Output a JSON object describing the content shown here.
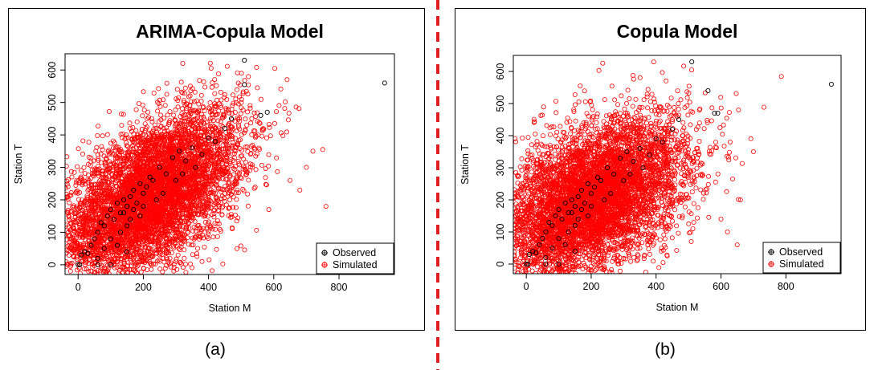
{
  "captions": [
    "(a)",
    "(b)"
  ],
  "divider_color": "#e02020",
  "chart_data": [
    {
      "type": "scatter",
      "title": "ARIMA-Copula Model",
      "xlabel": "Station M",
      "ylabel": "Station T",
      "xlim": [
        -40,
        970
      ],
      "ylim": [
        -30,
        650
      ],
      "xticks": [
        0,
        200,
        400,
        600,
        800
      ],
      "yticks": [
        0,
        100,
        200,
        300,
        400,
        500,
        600
      ],
      "legend": {
        "position": "bottom-right",
        "entries": [
          "Observed",
          "Simulated"
        ]
      },
      "grid": false,
      "series": [
        {
          "name": "Observed",
          "color": "#000000",
          "marker": "circle-open",
          "points": [
            [
              0,
              0
            ],
            [
              5,
              0
            ],
            [
              10,
              30
            ],
            [
              20,
              40
            ],
            [
              30,
              35
            ],
            [
              40,
              60
            ],
            [
              50,
              80
            ],
            [
              60,
              100
            ],
            [
              70,
              130
            ],
            [
              80,
              120
            ],
            [
              90,
              150
            ],
            [
              100,
              170
            ],
            [
              110,
              140
            ],
            [
              120,
              190
            ],
            [
              130,
              160
            ],
            [
              140,
              200
            ],
            [
              150,
              180
            ],
            [
              160,
              210
            ],
            [
              170,
              230
            ],
            [
              180,
              190
            ],
            [
              190,
              250
            ],
            [
              200,
              220
            ],
            [
              210,
              240
            ],
            [
              220,
              270
            ],
            [
              230,
              260
            ],
            [
              250,
              300
            ],
            [
              270,
              280
            ],
            [
              290,
              330
            ],
            [
              310,
              350
            ],
            [
              330,
              320
            ],
            [
              350,
              360
            ],
            [
              380,
              340
            ],
            [
              400,
              390
            ],
            [
              420,
              380
            ],
            [
              450,
              420
            ],
            [
              470,
              450
            ],
            [
              510,
              555
            ],
            [
              510,
              630
            ],
            [
              940,
              560
            ],
            [
              130,
              100
            ],
            [
              150,
              120
            ],
            [
              160,
              140
            ],
            [
              120,
              60
            ],
            [
              100,
              80
            ],
            [
              80,
              50
            ],
            [
              60,
              20
            ],
            [
              140,
              160
            ],
            [
              170,
              170
            ],
            [
              190,
              150
            ],
            [
              200,
              180
            ],
            [
              240,
              200
            ],
            [
              260,
              220
            ],
            [
              300,
              260
            ],
            [
              320,
              280
            ],
            [
              360,
              300
            ],
            [
              560,
              460
            ],
            [
              580,
              470
            ],
            [
              100,
              0
            ],
            [
              60,
              0
            ],
            [
              150,
              40
            ]
          ]
        },
        {
          "name": "Simulated",
          "color": "#ff0000",
          "marker": "circle-open",
          "mean": [
            220,
            210
          ],
          "sd": [
            140,
            130
          ],
          "corr": 0.55,
          "count": 6000,
          "outliers": [
            [
              700,
              300
            ],
            [
              720,
              350
            ],
            [
              760,
              180
            ],
            [
              750,
              355
            ],
            [
              680,
              230
            ],
            [
              650,
              260
            ]
          ]
        }
      ]
    },
    {
      "type": "scatter",
      "title": "Copula Model",
      "xlabel": "Station M",
      "ylabel": "Station T",
      "xlim": [
        -40,
        970
      ],
      "ylim": [
        -30,
        650
      ],
      "xticks": [
        0,
        200,
        400,
        600,
        800
      ],
      "yticks": [
        0,
        100,
        200,
        300,
        400,
        500,
        600
      ],
      "legend": {
        "position": "bottom-right",
        "entries": [
          "Observed",
          "Simulated"
        ]
      },
      "grid": false,
      "series": [
        {
          "name": "Observed",
          "color": "#000000",
          "marker": "circle-open",
          "points": [
            [
              0,
              0
            ],
            [
              5,
              0
            ],
            [
              10,
              30
            ],
            [
              20,
              40
            ],
            [
              30,
              35
            ],
            [
              40,
              60
            ],
            [
              50,
              80
            ],
            [
              60,
              100
            ],
            [
              70,
              130
            ],
            [
              80,
              120
            ],
            [
              90,
              150
            ],
            [
              100,
              170
            ],
            [
              110,
              140
            ],
            [
              120,
              190
            ],
            [
              130,
              160
            ],
            [
              140,
              200
            ],
            [
              150,
              180
            ],
            [
              160,
              210
            ],
            [
              170,
              230
            ],
            [
              180,
              190
            ],
            [
              190,
              250
            ],
            [
              200,
              220
            ],
            [
              210,
              240
            ],
            [
              220,
              270
            ],
            [
              230,
              260
            ],
            [
              250,
              300
            ],
            [
              270,
              280
            ],
            [
              290,
              330
            ],
            [
              310,
              350
            ],
            [
              330,
              320
            ],
            [
              350,
              360
            ],
            [
              380,
              340
            ],
            [
              400,
              390
            ],
            [
              420,
              380
            ],
            [
              450,
              420
            ],
            [
              470,
              450
            ],
            [
              510,
              630
            ],
            [
              560,
              540
            ],
            [
              940,
              560
            ],
            [
              130,
              100
            ],
            [
              150,
              120
            ],
            [
              160,
              140
            ],
            [
              120,
              60
            ],
            [
              100,
              80
            ],
            [
              80,
              50
            ],
            [
              60,
              20
            ],
            [
              140,
              160
            ],
            [
              170,
              170
            ],
            [
              190,
              150
            ],
            [
              200,
              180
            ],
            [
              240,
              200
            ],
            [
              260,
              220
            ],
            [
              300,
              260
            ],
            [
              320,
              280
            ],
            [
              360,
              300
            ],
            [
              590,
              470
            ],
            [
              580,
              470
            ],
            [
              100,
              0
            ],
            [
              60,
              0
            ],
            [
              150,
              40
            ]
          ]
        },
        {
          "name": "Simulated",
          "color": "#ff0000",
          "marker": "circle-open",
          "mean": [
            200,
            200
          ],
          "sd": [
            145,
            125
          ],
          "corr": 0.45,
          "count": 6000,
          "outliers": [
            [
              700,
              350
            ],
            [
              660,
              200
            ],
            [
              650,
              60
            ],
            [
              620,
              100
            ],
            [
              600,
              140
            ]
          ]
        }
      ]
    }
  ]
}
